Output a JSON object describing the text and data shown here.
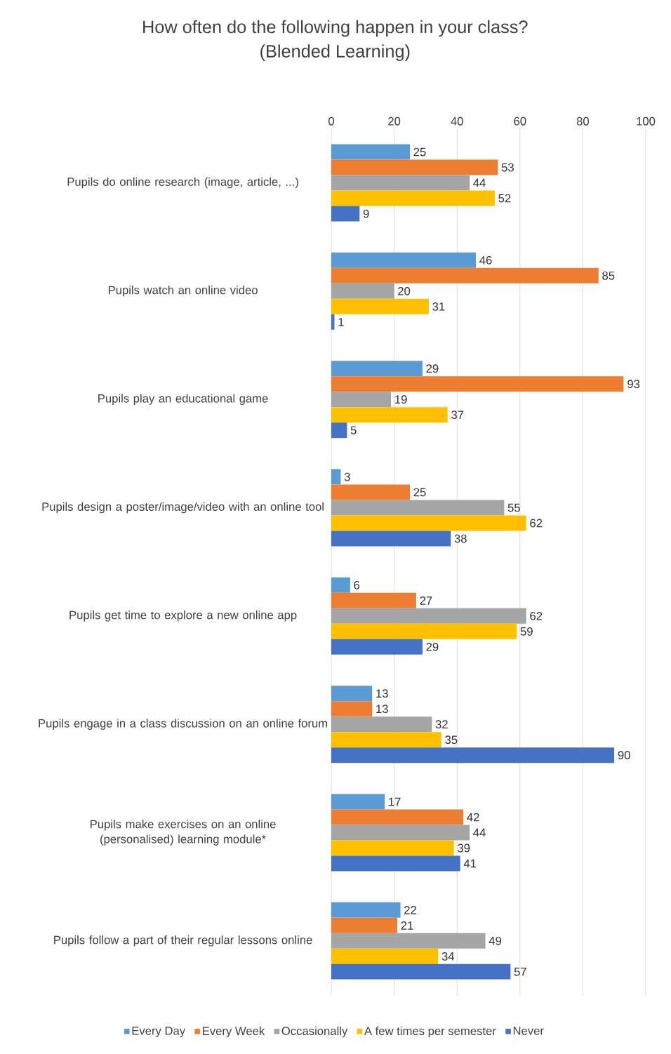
{
  "chart_data": {
    "type": "bar",
    "orientation": "horizontal",
    "title": "How often do the following happen in your class?",
    "subtitle": "(Blended Learning)",
    "categories": [
      "Pupils do online research (image, article, ...)",
      "Pupils watch an online video",
      "Pupils play an educational game",
      "Pupils design a poster/image/video with an online tool",
      "Pupils get time to explore a new online app",
      "Pupils engage in a class discussion on an online forum",
      "Pupils make exercises on an online (personalised) learning module*",
      "Pupils follow a part of their regular lessons online"
    ],
    "series": [
      {
        "name": "Every Day",
        "color": "#5b9bd5",
        "values": [
          25,
          46,
          29,
          3,
          6,
          13,
          17,
          22
        ]
      },
      {
        "name": "Every Week",
        "color": "#ed7d31",
        "values": [
          53,
          85,
          93,
          25,
          27,
          13,
          42,
          21
        ]
      },
      {
        "name": "Occasionally",
        "color": "#a5a5a5",
        "values": [
          44,
          20,
          19,
          55,
          62,
          32,
          44,
          49
        ]
      },
      {
        "name": "A few times per semester",
        "color": "#ffc000",
        "values": [
          52,
          31,
          37,
          62,
          59,
          35,
          39,
          34
        ]
      },
      {
        "name": "Never",
        "color": "#4472c4",
        "values": [
          9,
          1,
          5,
          38,
          29,
          90,
          41,
          57
        ]
      }
    ],
    "xlim": [
      0,
      100
    ],
    "xticks": [
      0,
      20,
      40,
      60,
      80,
      100
    ],
    "grid": "x",
    "legend": "bottom",
    "data_labels": true
  }
}
